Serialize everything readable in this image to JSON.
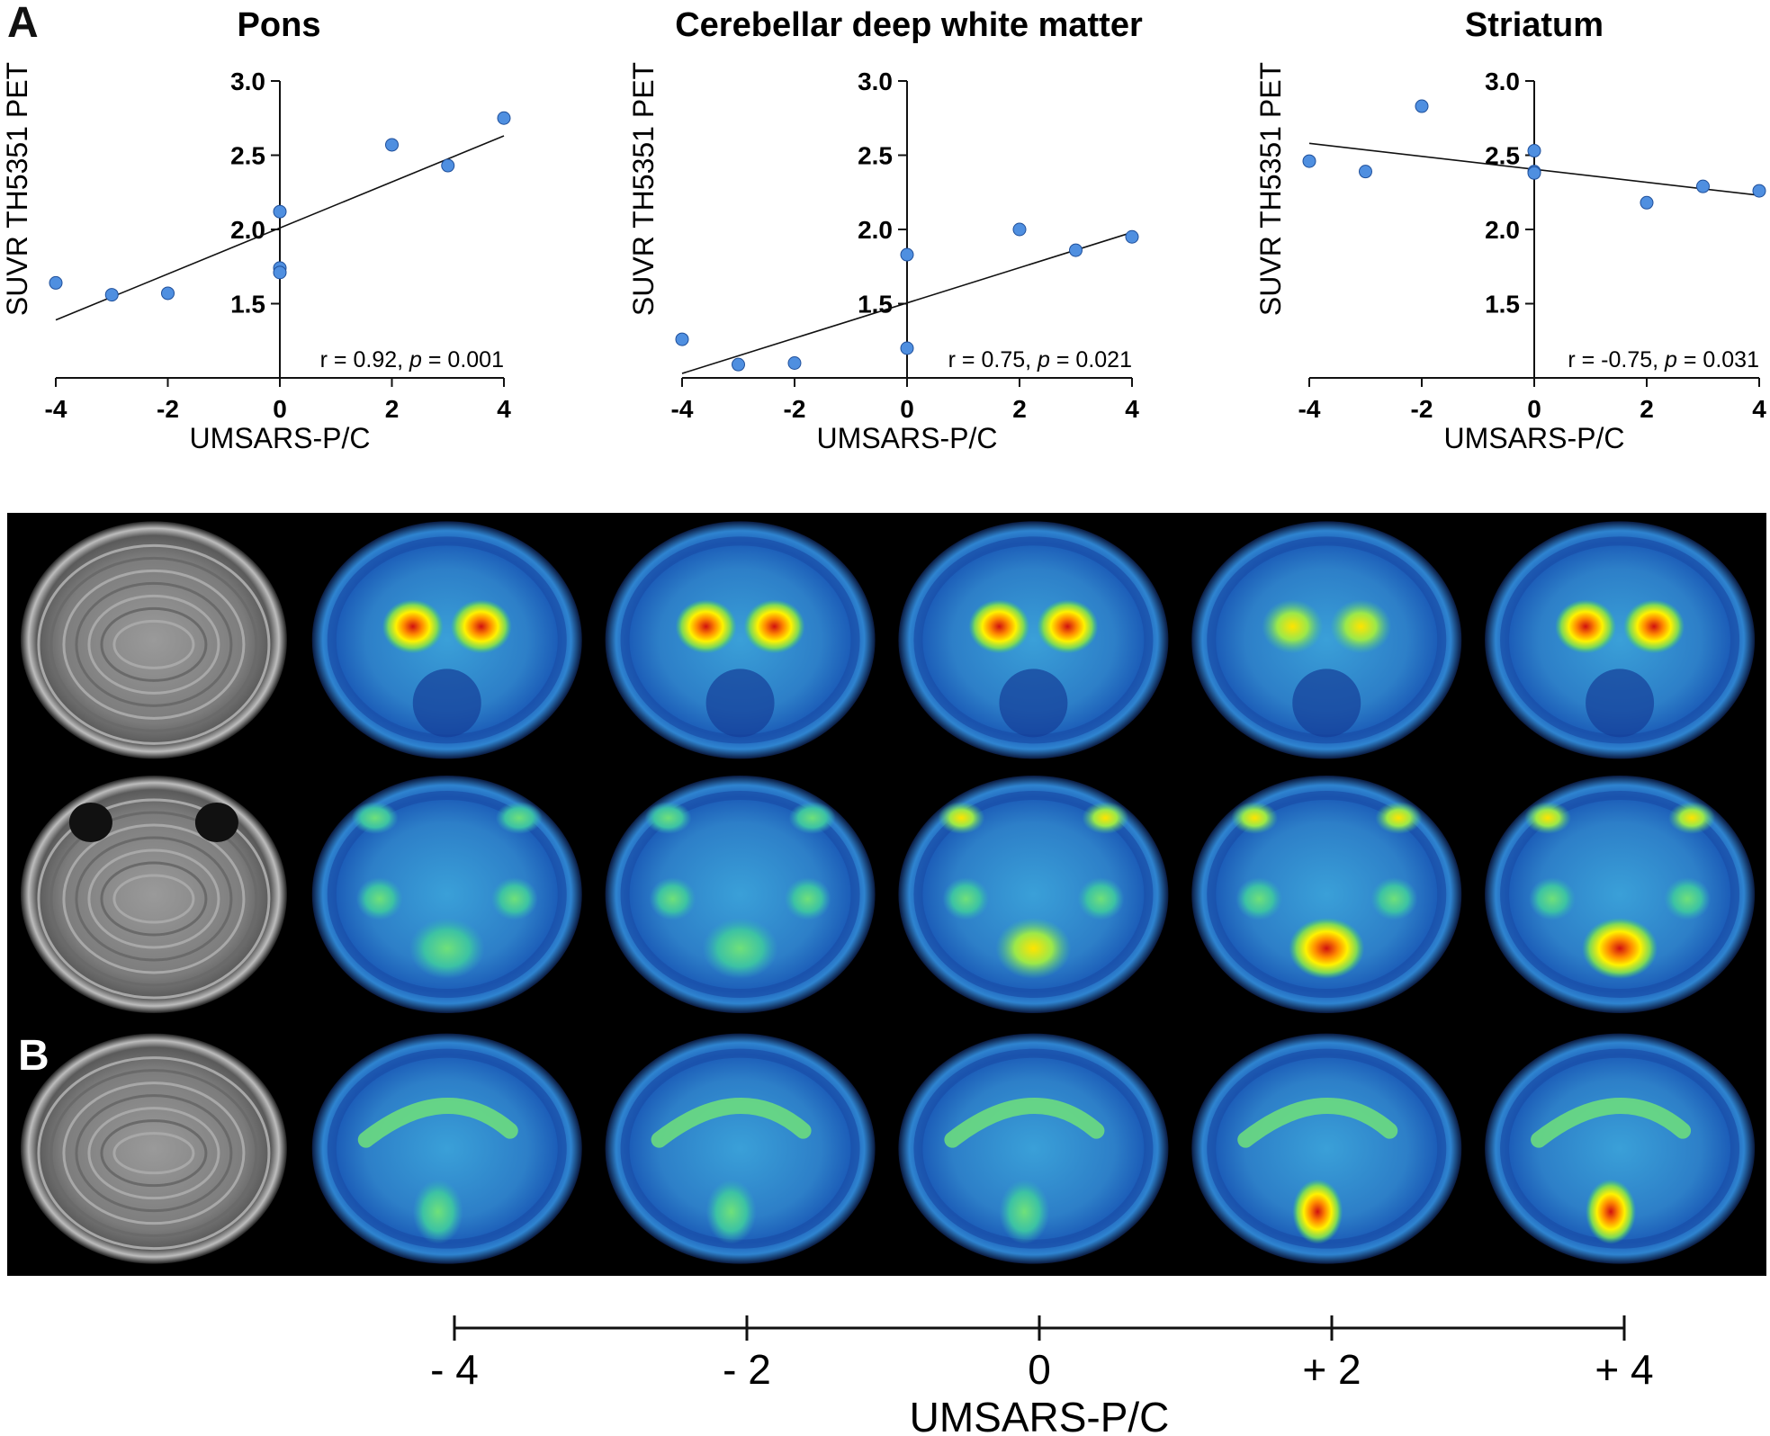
{
  "panels": {
    "a_label": "A",
    "b_label": "B"
  },
  "chart_data": [
    {
      "type": "scatter",
      "title": "Pons",
      "xlabel": "UMSARS-P/C",
      "ylabel": "SUVR TH5351 PET",
      "xlim": [
        -4,
        4
      ],
      "ylim": [
        1.0,
        3.0
      ],
      "x_ticks": [
        -4,
        -2,
        0,
        2,
        4
      ],
      "y_ticks": [
        1.5,
        2.0,
        2.5,
        3.0
      ],
      "x_tick_labels": [
        "-4",
        "-2",
        "0",
        "2",
        "4"
      ],
      "y_tick_labels": [
        "1.5",
        "2.0",
        "2.5",
        "3.0"
      ],
      "points": [
        {
          "x": -4,
          "y": 1.64
        },
        {
          "x": -3,
          "y": 1.56
        },
        {
          "x": -2,
          "y": 1.57
        },
        {
          "x": 0,
          "y": 2.12
        },
        {
          "x": 0,
          "y": 1.74
        },
        {
          "x": 0,
          "y": 1.71
        },
        {
          "x": 2,
          "y": 2.57
        },
        {
          "x": 3,
          "y": 2.43
        },
        {
          "x": 4,
          "y": 2.75
        }
      ],
      "fit_line": {
        "x": [
          -4,
          4
        ],
        "y": [
          1.39,
          2.63
        ]
      },
      "stat": {
        "r_text": "r = 0.92, ",
        "p_symbol": "p",
        "p_text": " = 0.001"
      },
      "grid": false,
      "marker_color": "#4f8fe0"
    },
    {
      "type": "scatter",
      "title": "Cerebellar deep white matter",
      "xlabel": "UMSARS-P/C",
      "ylabel": "SUVR TH5351 PET",
      "xlim": [
        -4,
        4
      ],
      "ylim": [
        1.0,
        3.0
      ],
      "x_ticks": [
        -4,
        -2,
        0,
        2,
        4
      ],
      "y_ticks": [
        1.5,
        2.0,
        2.5,
        3.0
      ],
      "x_tick_labels": [
        "-4",
        "-2",
        "0",
        "2",
        "4"
      ],
      "y_tick_labels": [
        "1.5",
        "2.0",
        "2.5",
        "3.0"
      ],
      "points": [
        {
          "x": -4,
          "y": 1.26
        },
        {
          "x": -3,
          "y": 1.09
        },
        {
          "x": -2,
          "y": 1.1
        },
        {
          "x": 0,
          "y": 1.83
        },
        {
          "x": 0,
          "y": 1.2
        },
        {
          "x": 2,
          "y": 2.0
        },
        {
          "x": 3,
          "y": 1.86
        },
        {
          "x": 4,
          "y": 1.95
        }
      ],
      "fit_line": {
        "x": [
          -4,
          4
        ],
        "y": [
          1.03,
          1.98
        ]
      },
      "stat": {
        "r_text": "r = 0.75, ",
        "p_symbol": "p",
        "p_text": " = 0.021"
      },
      "grid": false,
      "marker_color": "#4f8fe0"
    },
    {
      "type": "scatter",
      "title": "Striatum",
      "xlabel": "UMSARS-P/C",
      "ylabel": "SUVR TH5351 PET",
      "xlim": [
        -4,
        4
      ],
      "ylim": [
        1.0,
        3.0
      ],
      "x_ticks": [
        -4,
        -2,
        0,
        2,
        4
      ],
      "y_ticks": [
        1.5,
        2.0,
        2.5,
        3.0
      ],
      "x_tick_labels": [
        "-4",
        "-2",
        "0",
        "2",
        "4"
      ],
      "y_tick_labels": [
        "1.5",
        "2.0",
        "2.5",
        "3.0"
      ],
      "points": [
        {
          "x": -4,
          "y": 2.46
        },
        {
          "x": -3,
          "y": 2.39
        },
        {
          "x": -2,
          "y": 2.83
        },
        {
          "x": 0,
          "y": 2.53
        },
        {
          "x": 0,
          "y": 2.39
        },
        {
          "x": 0,
          "y": 2.38
        },
        {
          "x": 2,
          "y": 2.18
        },
        {
          "x": 3,
          "y": 2.29
        },
        {
          "x": 4,
          "y": 2.26
        }
      ],
      "fit_line": {
        "x": [
          -4,
          4
        ],
        "y": [
          2.58,
          2.23
        ]
      },
      "stat": {
        "r_text": "r = -0.75, ",
        "p_symbol": "p",
        "p_text": " = 0.031"
      },
      "grid": false,
      "marker_color": "#4f8fe0"
    }
  ],
  "scale_bar": {
    "values": [
      -4,
      -2,
      0,
      2,
      4
    ],
    "labels": [
      "- 4",
      "- 2",
      "0",
      "+ 2",
      "+ 4"
    ],
    "axis_label": "UMSARS-P/C"
  },
  "images": {
    "rows": [
      "axial-striatum",
      "axial-cerebellum",
      "sagittal-midline"
    ],
    "columns": [
      "mri",
      "pet-umsars-minus-4",
      "pet-umsars-minus-2",
      "pet-umsars-0",
      "pet-umsars-plus-2",
      "pet-umsars-plus-4"
    ]
  }
}
